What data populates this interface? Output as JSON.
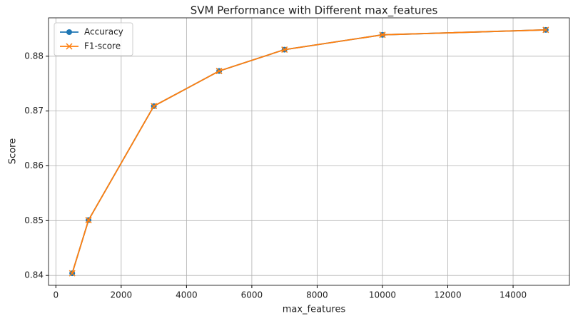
{
  "chart_data": {
    "type": "line",
    "title": "SVM Performance with Different max_features",
    "x_label": "max_features",
    "y_label": "Score",
    "x": [
      500,
      1000,
      3000,
      5000,
      7000,
      10000,
      15000
    ],
    "series": [
      {
        "name": "Accuracy",
        "color": "#1f77b4",
        "marker": "o",
        "values": [
          0.8404,
          0.8501,
          0.8709,
          0.8773,
          0.8812,
          0.8839,
          0.8848
        ]
      },
      {
        "name": "F1-score",
        "color": "#ff7f0e",
        "marker": "x",
        "values": [
          0.8404,
          0.8501,
          0.8709,
          0.8773,
          0.8812,
          0.8839,
          0.8848
        ]
      }
    ],
    "xlim": [
      -225,
      15725
    ],
    "xticks": [
      0,
      2000,
      4000,
      6000,
      8000,
      10000,
      12000,
      14000
    ],
    "ylim": [
      0.8382,
      0.887
    ],
    "yticks": [
      0.84,
      0.85,
      0.86,
      0.87,
      0.88
    ],
    "grid": true,
    "legend": "upper left"
  }
}
